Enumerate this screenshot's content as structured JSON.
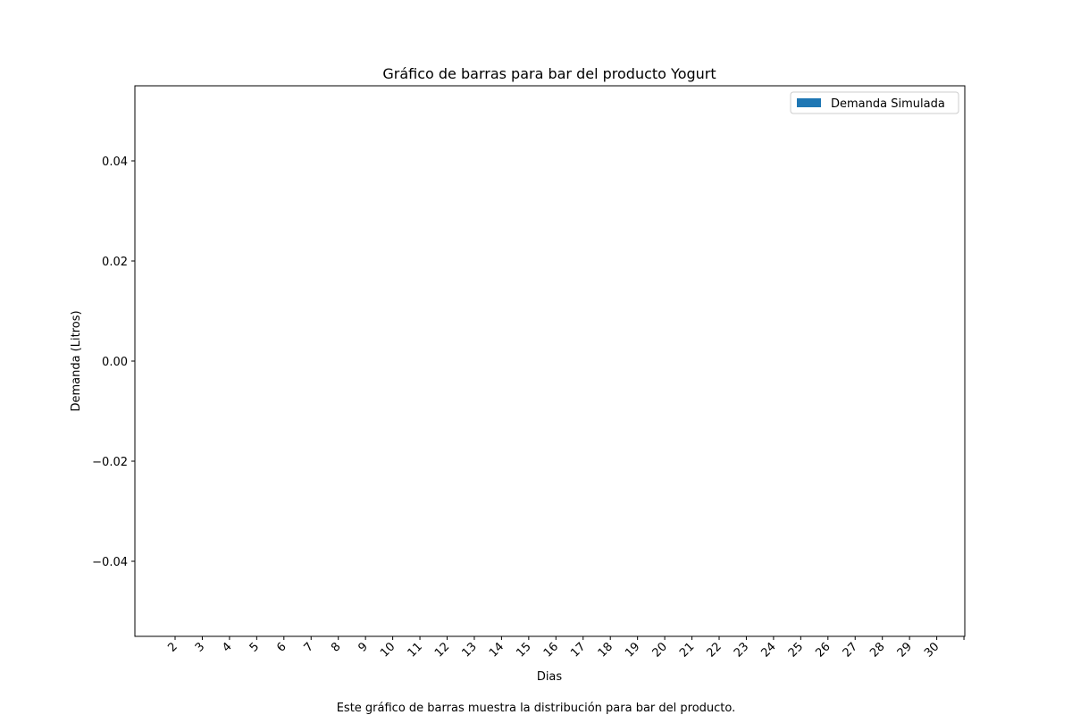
{
  "chart_data": {
    "type": "bar",
    "title": "Gráfico de barras para bar del producto Yogurt",
    "x_label": "Dias",
    "y_label": "Demanda (Litros)",
    "caption": "Este gráfico de barras muestra la distribución para bar del producto.",
    "categories": [
      "2",
      "3",
      "4",
      "5",
      "6",
      "7",
      "8",
      "9",
      "10",
      "11",
      "12",
      "13",
      "14",
      "15",
      "16",
      "17",
      "18",
      "19",
      "20",
      "21",
      "22",
      "23",
      "24",
      "25",
      "26",
      "27",
      "28",
      "29",
      "30",
      null
    ],
    "series": [
      {
        "name": "Demanda Simulada",
        "color": "#1f77b4",
        "values": [
          0,
          0,
          0,
          0,
          0,
          0,
          0,
          0,
          0,
          0,
          0,
          0,
          0,
          0,
          0,
          0,
          0,
          0,
          0,
          0,
          0,
          0,
          0,
          0,
          0,
          0,
          0,
          0,
          0,
          0
        ]
      }
    ],
    "ylim": [
      -0.055,
      0.055
    ],
    "yticks": [
      {
        "value": -0.04,
        "label": "−0.04"
      },
      {
        "value": -0.02,
        "label": "−0.02"
      },
      {
        "value": 0,
        "label": "0.00"
      },
      {
        "value": 0.02,
        "label": "0.02"
      },
      {
        "value": 0.04,
        "label": "0.04"
      }
    ],
    "legend": "upper right"
  }
}
